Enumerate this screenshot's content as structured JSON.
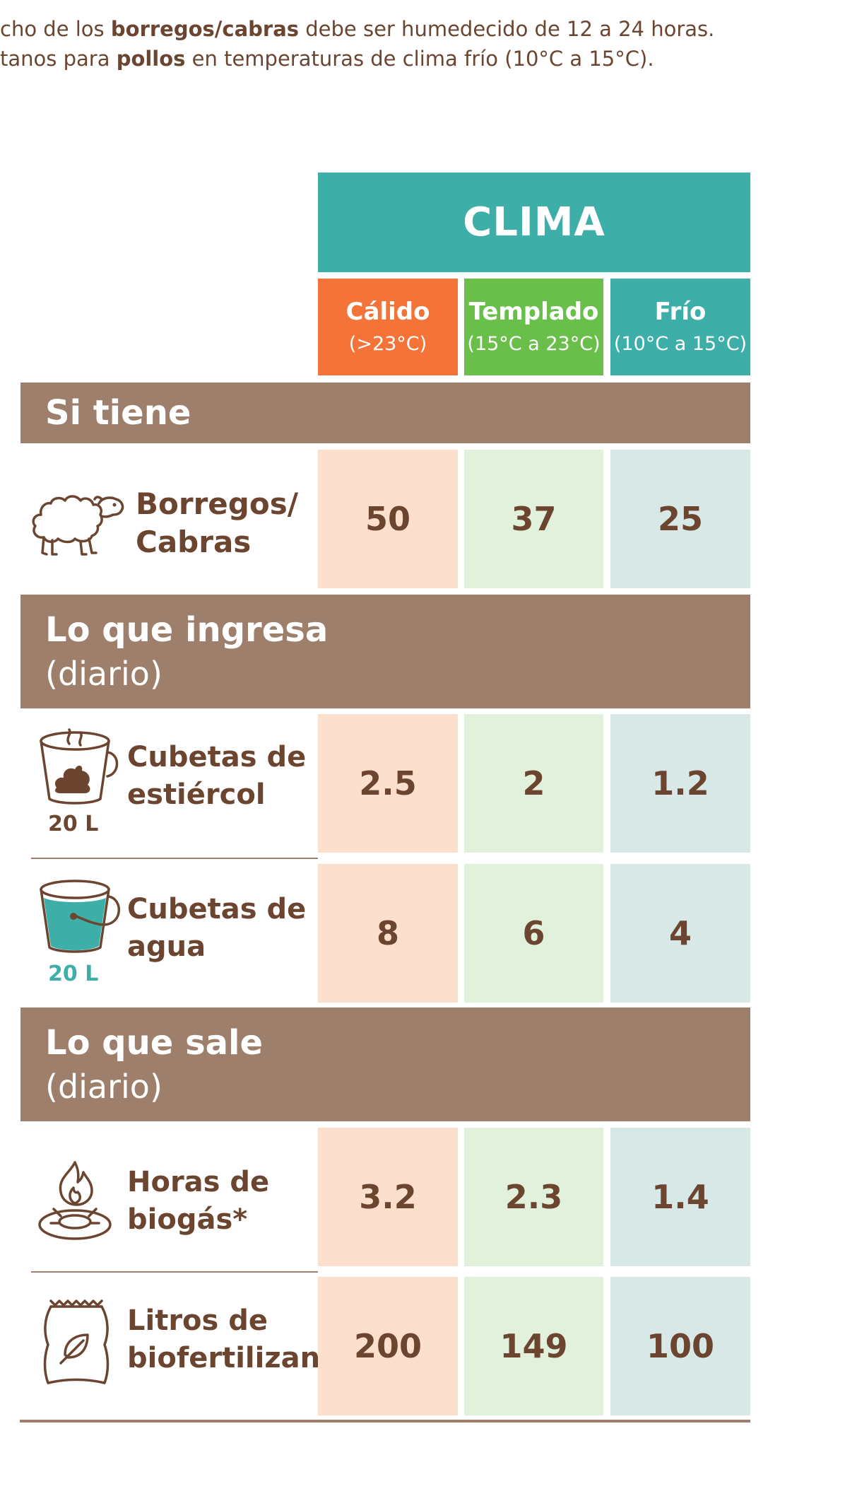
{
  "notes": {
    "line1_pre": "cho de los ",
    "line1_bold": "borregos/cabras",
    "line1_post": " debe ser humedecido de 12 a 24 horas.",
    "line2_pre": "tanos para ",
    "line2_bold": "pollos",
    "line2_post": " en temperaturas de clima frío (10°C a 15°C)."
  },
  "header": {
    "title": "CLIMA",
    "columns": [
      {
        "name": "Cálido",
        "range": "(>23°C)",
        "color": "#f47339"
      },
      {
        "name": "Templado",
        "range": "(15°C a 23°C)",
        "color": "#6abf4b"
      },
      {
        "name": "Frío",
        "range": "(10°C a 15°C)",
        "color": "#3eaea9"
      }
    ]
  },
  "sections": {
    "have": {
      "title": "Si tiene"
    },
    "in": {
      "title": "Lo que ingresa",
      "subtitle": "(diario)"
    },
    "out": {
      "title": "Lo que sale",
      "subtitle": "(diario)"
    }
  },
  "rows": {
    "animals": {
      "label_l1": "Borregos/",
      "label_l2": "Cabras",
      "icon": "sheep-icon",
      "values": [
        "50",
        "37",
        "25"
      ]
    },
    "manure": {
      "label_l1": "Cubetas de",
      "label_l2": "estiércol",
      "bucket": "20 L",
      "icon": "manure-bucket-icon",
      "values": [
        "2.5",
        "2",
        "1.2"
      ]
    },
    "water": {
      "label_l1": "Cubetas de",
      "label_l2": "agua",
      "bucket": "20 L",
      "icon": "water-bucket-icon",
      "values": [
        "8",
        "6",
        "4"
      ]
    },
    "biogas": {
      "label_l1": "Horas de",
      "label_l2": "biogás*",
      "icon": "gas-stove-icon",
      "values": [
        "3.2",
        "2.3",
        "1.4"
      ]
    },
    "fertilizer": {
      "label_l1": "Litros de",
      "label_l2": "biofertilizante",
      "icon": "fertilizer-bag-icon",
      "values": [
        "200",
        "149",
        "100"
      ]
    }
  },
  "colors": {
    "brown_text": "#6b4530",
    "section_bg": "#9d7f6c",
    "teal": "#3eaea9",
    "orange": "#f47339",
    "green": "#6abf4b",
    "warm_cell": "#fcdfcc",
    "temperate_cell": "#e1f1dc",
    "cold_cell": "#d7e8e6"
  }
}
